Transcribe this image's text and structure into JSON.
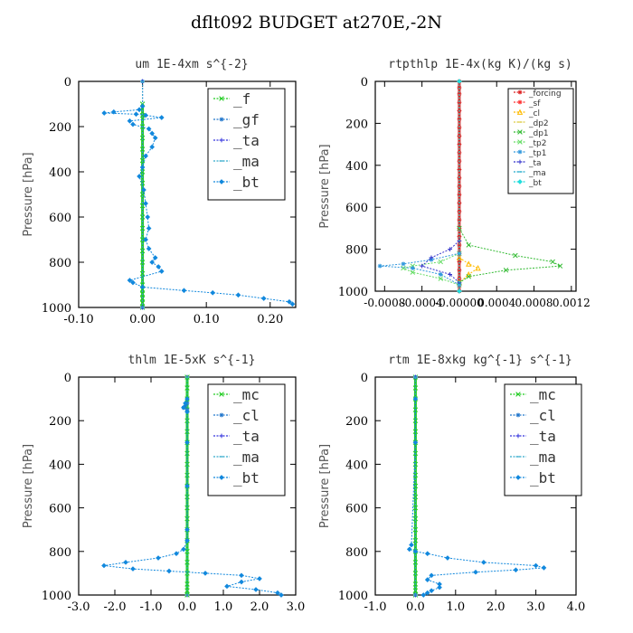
{
  "figure_title": "dflt092  BUDGET at270E,-2N",
  "chart_data": [
    {
      "type": "line",
      "title": "um   1E-4xm s^{-2}",
      "ylabel": "Pressure [hPa]",
      "xlabel": "",
      "xlim": [
        -0.1,
        0.24
      ],
      "ylim": [
        1000,
        0
      ],
      "xticks": [
        -0.1,
        0.0,
        0.1,
        0.2
      ],
      "xtick_labels": [
        "-0.10",
        "0.00",
        "0.10",
        "0.20"
      ],
      "yticks": [
        0,
        200,
        400,
        600,
        800,
        1000
      ],
      "ytick_labels": [
        "0",
        "200",
        "400",
        "600",
        "800",
        "1000"
      ],
      "legend_position": "top-right",
      "legend_style": "large",
      "series": [
        {
          "name": "_f",
          "color": "#22cc22",
          "marker": "cross",
          "x": [
            0,
            0,
            0,
            0,
            0,
            0,
            0,
            0,
            0,
            0,
            0,
            0,
            0,
            0,
            0,
            0,
            0,
            0,
            0,
            0,
            0,
            0
          ],
          "y": [
            100,
            150,
            200,
            250,
            300,
            350,
            400,
            450,
            500,
            550,
            600,
            650,
            700,
            750,
            800,
            850,
            900,
            920,
            940,
            960,
            980,
            1000
          ]
        },
        {
          "name": "_gf",
          "color": "#2277cc",
          "marker": "star",
          "x": [
            0,
            0
          ],
          "y": [
            0,
            1000
          ]
        },
        {
          "name": "_ta",
          "color": "#3333dd",
          "marker": "plus",
          "x": [
            0,
            0
          ],
          "y": [
            0,
            1000
          ]
        },
        {
          "name": "_ma",
          "color": "#33aacc",
          "marker": "dash",
          "x": [
            0,
            0
          ],
          "y": [
            0,
            1000
          ]
        },
        {
          "name": "_bt",
          "color": "#1188dd",
          "marker": "diamond",
          "x": [
            0,
            -0.005,
            -0.045,
            -0.06,
            -0.01,
            0.005,
            0.03,
            -0.02,
            -0.015,
            0.01,
            0.015,
            0.02,
            0.015,
            0.005,
            0.0,
            -0.005,
            0.002,
            0.005,
            0.008,
            0.01,
            0.005,
            0.01,
            0.02,
            0.015,
            0.025,
            0.03,
            -0.02,
            -0.015,
            0.0,
            0.065,
            0.11,
            0.15,
            0.19,
            0.23,
            0.235
          ],
          "y": [
            110,
            125,
            135,
            140,
            145,
            150,
            160,
            175,
            190,
            210,
            230,
            250,
            290,
            330,
            380,
            420,
            480,
            540,
            600,
            650,
            700,
            740,
            780,
            800,
            820,
            840,
            880,
            890,
            910,
            925,
            935,
            945,
            960,
            975,
            985
          ]
        }
      ]
    },
    {
      "type": "line",
      "title": "rtpthlp   1E-4x(kg K)/(kg s)",
      "ylabel": "Pressure [hPa]",
      "xlabel": "",
      "xlim": [
        -0.0009,
        0.00125
      ],
      "ylim": [
        1000,
        0
      ],
      "xticks": [
        -0.0008,
        -0.0004,
        0.0,
        0.0004,
        0.0008,
        0.0012
      ],
      "xtick_labels": [
        "-0.0008",
        "-0.0004",
        "-0.00000",
        "0.0004",
        "0.0008",
        "0.0012"
      ],
      "yticks": [
        0,
        200,
        400,
        600,
        800,
        1000
      ],
      "ytick_labels": [
        "0",
        "200",
        "400",
        "600",
        "800",
        "1000"
      ],
      "legend_position": "top-right",
      "legend_style": "small",
      "series": [
        {
          "name": "_forcing",
          "color": "#dd2222",
          "marker": "star",
          "x": [
            0,
            0,
            0,
            0,
            0,
            0,
            0,
            0,
            0,
            0,
            0,
            0,
            0,
            0,
            0,
            0,
            0,
            0,
            0,
            0,
            0,
            0,
            0,
            0,
            0,
            0,
            0
          ],
          "y": [
            0,
            30,
            60,
            100,
            140,
            180,
            220,
            260,
            300,
            340,
            380,
            420,
            460,
            500,
            540,
            580,
            620,
            660,
            700,
            740,
            780,
            820,
            860,
            900,
            940,
            970,
            1000
          ]
        },
        {
          "name": "_sf",
          "color": "#ff3333",
          "marker": "star",
          "x": [
            0,
            0
          ],
          "y": [
            0,
            1000
          ]
        },
        {
          "name": "_cl",
          "color": "#ffbb00",
          "marker": "tri",
          "x": [
            0,
            0.0001,
            0.0002,
            0.0001,
            0
          ],
          "y": [
            840,
            870,
            890,
            920,
            960
          ]
        },
        {
          "name": "_dp2",
          "color": "#ddcc44",
          "marker": "dash",
          "x": [
            0,
            0
          ],
          "y": [
            0,
            1000
          ]
        },
        {
          "name": "_dp1",
          "color": "#33bb33",
          "marker": "cross",
          "x": [
            0,
            0.0001,
            0.0006,
            0.001,
            0.00108,
            0.0005,
            0.0001,
            0
          ],
          "y": [
            700,
            780,
            830,
            860,
            880,
            900,
            930,
            960
          ]
        },
        {
          "name": "_tp2",
          "color": "#66dd66",
          "marker": "cross",
          "x": [
            0,
            -0.0002,
            -0.0005,
            -0.0006,
            -0.0005,
            -0.0002,
            0
          ],
          "y": [
            820,
            860,
            880,
            890,
            910,
            940,
            970
          ]
        },
        {
          "name": "_tp1",
          "color": "#3399dd",
          "marker": "star",
          "x": [
            0,
            -0.0003,
            -0.0006,
            -0.00085,
            -0.0005,
            -0.0002,
            0
          ],
          "y": [
            820,
            850,
            870,
            880,
            890,
            920,
            970
          ]
        },
        {
          "name": "_ta",
          "color": "#3333cc",
          "marker": "plus",
          "x": [
            0,
            -0.0001,
            -0.0003,
            -0.0004,
            -0.0001,
            0
          ],
          "y": [
            760,
            800,
            840,
            880,
            920,
            960
          ]
        },
        {
          "name": "_ma",
          "color": "#22aacc",
          "marker": "dash",
          "x": [
            0,
            0
          ],
          "y": [
            0,
            1000
          ]
        },
        {
          "name": "_bt",
          "color": "#22dddd",
          "marker": "diamond",
          "x": [
            0,
            0
          ],
          "y": [
            0,
            1000
          ]
        }
      ]
    },
    {
      "type": "line",
      "title": "thlm   1E-5xK s^{-1}",
      "ylabel": "Pressure [hPa]",
      "xlabel": "",
      "xlim": [
        -3.0,
        3.0
      ],
      "ylim": [
        1000,
        0
      ],
      "xticks": [
        -3.0,
        -2.0,
        -1.0,
        0.0,
        1.0,
        2.0,
        3.0
      ],
      "xtick_labels": [
        "-3.0",
        "-2.0",
        "-1.0",
        "0.0",
        "1.0",
        "2.0",
        "3.0"
      ],
      "yticks": [
        0,
        200,
        400,
        600,
        800,
        1000
      ],
      "ytick_labels": [
        "0",
        "200",
        "400",
        "600",
        "800",
        "1000"
      ],
      "legend_position": "top-right",
      "legend_style": "large",
      "series": [
        {
          "name": "_mc",
          "color": "#22cc22",
          "marker": "cross",
          "x": [
            0,
            0,
            0,
            0,
            0,
            0,
            0,
            0,
            0,
            0,
            0,
            0,
            0,
            0,
            0,
            0,
            0,
            0,
            0,
            0,
            0,
            0
          ],
          "y": [
            0,
            50,
            100,
            150,
            200,
            250,
            300,
            350,
            400,
            450,
            500,
            550,
            600,
            650,
            700,
            750,
            800,
            850,
            900,
            950,
            980,
            1000
          ]
        },
        {
          "name": "_cl",
          "color": "#2277cc",
          "marker": "star",
          "x": [
            0,
            -0.05,
            -0.1,
            0
          ],
          "y": [
            120,
            130,
            140,
            150
          ]
        },
        {
          "name": "_ta",
          "color": "#3333dd",
          "marker": "plus",
          "x": [
            0,
            0
          ],
          "y": [
            0,
            1000
          ]
        },
        {
          "name": "_ma",
          "color": "#33aacc",
          "marker": "dash",
          "x": [
            0,
            0
          ],
          "y": [
            0,
            1000
          ]
        },
        {
          "name": "_bt",
          "color": "#1188dd",
          "marker": "diamond",
          "x": [
            0,
            -0.05,
            -0.1,
            0,
            0,
            0,
            0,
            0,
            -0.1,
            -0.3,
            -0.8,
            -1.7,
            -2.3,
            -1.5,
            -0.5,
            0.5,
            1.5,
            2.0,
            1.5,
            1.1,
            1.9,
            2.5,
            2.6
          ],
          "y": [
            100,
            120,
            140,
            160,
            300,
            500,
            700,
            750,
            790,
            810,
            830,
            850,
            865,
            880,
            890,
            900,
            910,
            925,
            940,
            960,
            975,
            990,
            1000
          ]
        }
      ]
    },
    {
      "type": "line",
      "title": "rtm   1E-8xkg kg^{-1} s^{-1}",
      "ylabel": "Pressure [hPa]",
      "xlabel": "",
      "xlim": [
        -1.0,
        4.0
      ],
      "ylim": [
        1000,
        0
      ],
      "xticks": [
        -1.0,
        0.0,
        1.0,
        2.0,
        3.0,
        4.0
      ],
      "xtick_labels": [
        "-1.0",
        "0.0",
        "1.0",
        "2.0",
        "3.0",
        "4.0"
      ],
      "yticks": [
        0,
        200,
        400,
        600,
        800,
        1000
      ],
      "ytick_labels": [
        "0",
        "200",
        "400",
        "600",
        "800",
        "1000"
      ],
      "legend_position": "top-right",
      "legend_style": "large",
      "series": [
        {
          "name": "_mc",
          "color": "#22cc22",
          "marker": "cross",
          "x": [
            0,
            0,
            0,
            0,
            0,
            0,
            0,
            0,
            0,
            0,
            0,
            0,
            0,
            0,
            0,
            0,
            0,
            0,
            0,
            0,
            0,
            0
          ],
          "y": [
            0,
            50,
            100,
            150,
            200,
            250,
            300,
            350,
            400,
            450,
            500,
            550,
            600,
            650,
            700,
            750,
            800,
            850,
            900,
            950,
            980,
            1000
          ]
        },
        {
          "name": "_cl",
          "color": "#2277cc",
          "marker": "star",
          "x": [
            0,
            0
          ],
          "y": [
            0,
            1000
          ]
        },
        {
          "name": "_ta",
          "color": "#3333dd",
          "marker": "plus",
          "x": [
            0,
            0
          ],
          "y": [
            0,
            1000
          ]
        },
        {
          "name": "_ma",
          "color": "#33aacc",
          "marker": "dash",
          "x": [
            0,
            0
          ],
          "y": [
            0,
            1000
          ]
        },
        {
          "name": "_bt",
          "color": "#1188dd",
          "marker": "diamond",
          "x": [
            0,
            0,
            -0.1,
            -0.15,
            0,
            0.3,
            0.8,
            1.7,
            3.0,
            3.2,
            2.5,
            1.5,
            0.4,
            0.3,
            0.6,
            0.6,
            0.4,
            0.3,
            0.2
          ],
          "y": [
            100,
            300,
            770,
            790,
            800,
            810,
            830,
            850,
            865,
            875,
            885,
            895,
            910,
            930,
            950,
            965,
            980,
            990,
            1000
          ]
        }
      ]
    }
  ]
}
